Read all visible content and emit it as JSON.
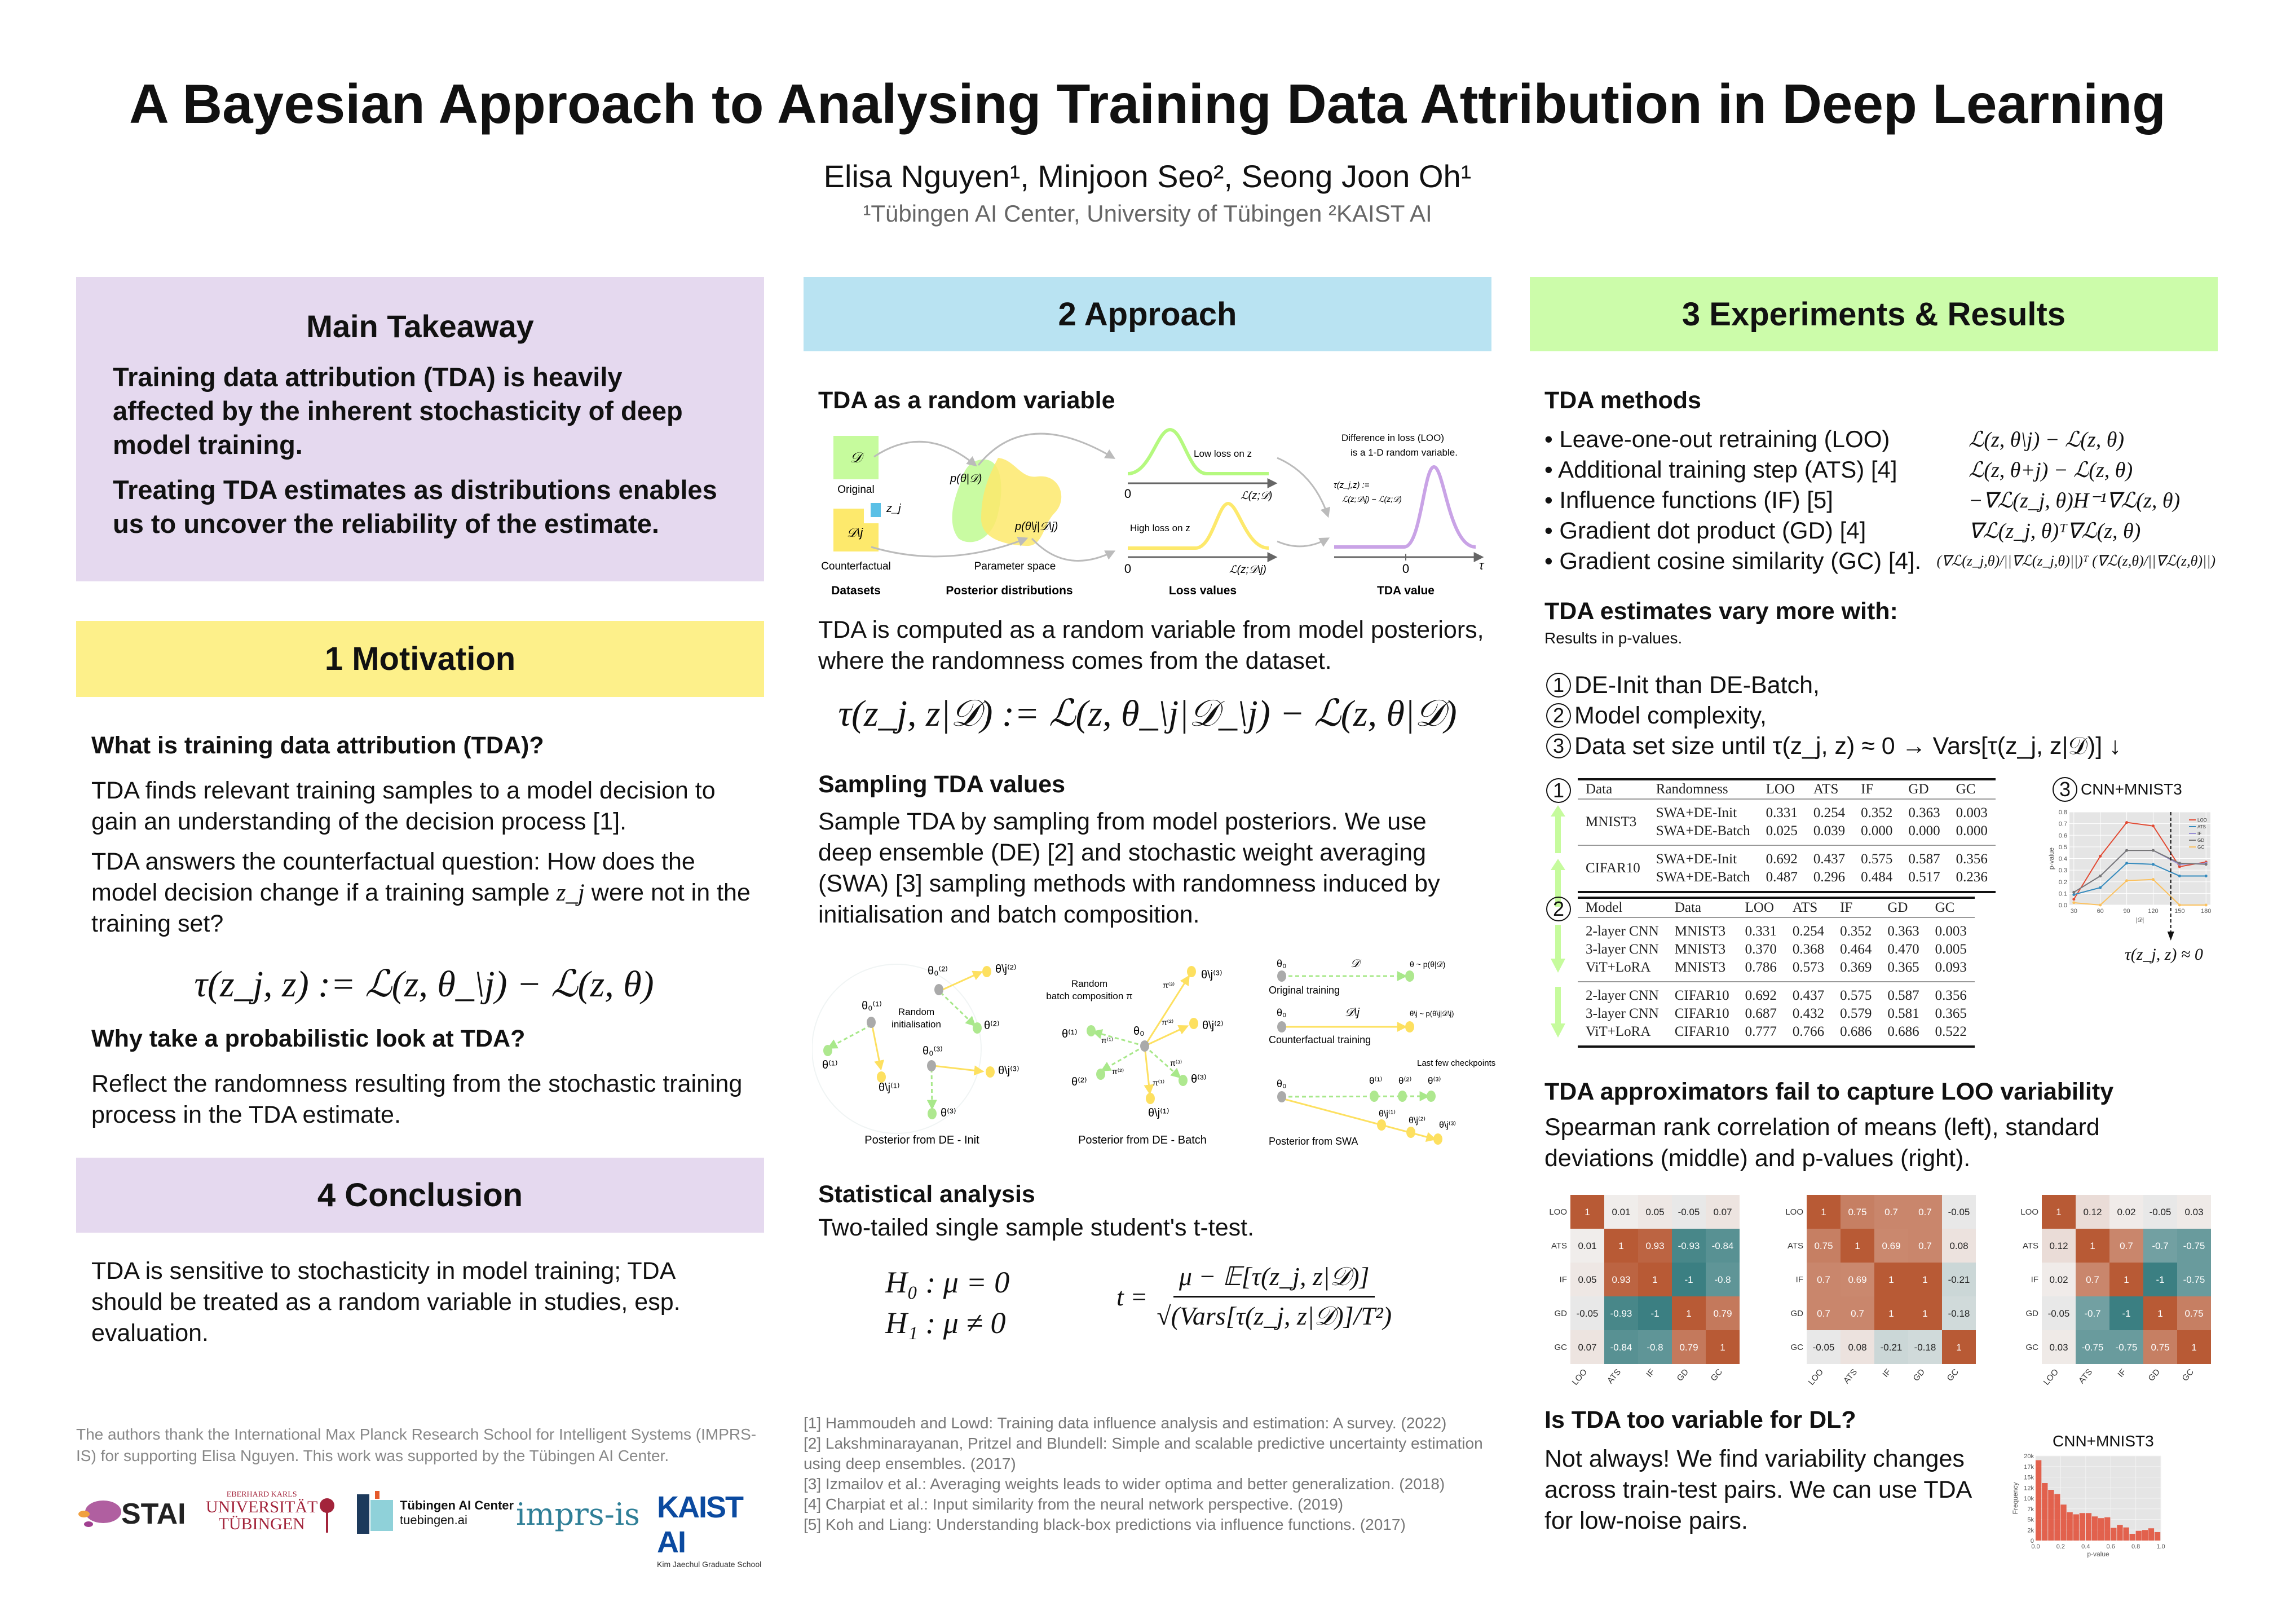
{
  "title": "A Bayesian Approach to Analysing Training Data Attribution in Deep Learning",
  "authors": "Elisa Nguyen¹, Minjoon Seo², Seong Joon Oh¹",
  "affiliations": "¹Tübingen AI Center, University of Tübingen  ²KAIST AI",
  "colors": {
    "lavender": "#e5d9ef",
    "yellow": "#fdf08a",
    "blue": "#b9e3f2",
    "green": "#ccfcaa",
    "heat_pos": "#b85a35",
    "heat_neg": "#3b7f82",
    "heat_mid": "#f1eeed"
  },
  "takeaway": {
    "heading": "Main Takeaway",
    "p1": "Training data attribution (TDA) is heavily affected by the inherent stochasticity of deep model training.",
    "p2": "Treating TDA estimates as distributions enables us to uncover the reliability of the estimate."
  },
  "motivation": {
    "heading": "1  Motivation",
    "q1": "What is training data attribution (TDA)?",
    "p1": "TDA finds relevant training samples to a model decision  to gain an understanding of the decision process [1].",
    "p2a": "TDA answers the counterfactual question: How does the model decision change if a training sample ",
    "p2var": "z_j",
    "p2b": " were not in the training set?",
    "equation": "τ(z_j, z) := ℒ(z, θ_\\j) − ℒ(z, θ)",
    "q2": "Why take a probabilistic look at TDA?",
    "p3": "Reflect the randomness resulting from the stochastic training process in the TDA estimate."
  },
  "conclusion": {
    "heading": "4  Conclusion",
    "text": "TDA is sensitive to stochasticity in model training; TDA should be treated as a random variable in studies, esp. evaluation."
  },
  "acknowledgement": "The authors thank the International Max Planck Research School for Intelligent Systems (IMPRS-IS) for supporting Elisa Nguyen. This work was supported by the Tübingen AI Center.",
  "logos": {
    "stai": "STAI",
    "uni_small": "EBERHARD KARLS",
    "uni_1": "UNIVERSITÄT",
    "uni_2": "TÜBINGEN",
    "tuai_1": "Tübingen AI Center",
    "tuai_2": "tuebingen.ai",
    "imprs": "imprs-is",
    "kaist": "KAIST AI",
    "kaist_sub": "Kim Jaechul Graduate School"
  },
  "approach": {
    "heading": "2  Approach",
    "sub1": "TDA as a random variable",
    "fig1": {
      "d": "𝒟",
      "original": "Original",
      "zj": "z_j",
      "dj": "𝒟\\j",
      "counterfactual": "Counterfactual",
      "post1": "p(θ|𝒟)",
      "post2": "p(θ\\j|𝒟\\j)",
      "param_space": "Parameter space",
      "low": "Low loss on z",
      "high": "High loss on z",
      "zero": "0",
      "loss1": "ℒ(z;𝒟)",
      "loss2": "ℒ(z;𝒟\\j)",
      "diff1": "Difference in loss (LOO)",
      "diff2": "is a 1-D random variable.",
      "tau_def1": "τ(z_j,z) :=",
      "tau_def2": "ℒ(z;𝒟\\j) − ℒ(z;𝒟)",
      "tau": "τ",
      "cap_datasets": "Datasets",
      "cap_post": "Posterior distributions",
      "cap_loss": "Loss values",
      "cap_tda": "TDA value"
    },
    "p1": "TDA is computed as a random variable from model posteriors, where the randomness comes from the dataset.",
    "equation": "τ(z_j, z|𝒟) := ℒ(z, θ_\\j|𝒟_\\j) − ℒ(z, θ|𝒟)",
    "sub2": "Sampling TDA values",
    "p2": "Sample TDA by sampling from model posteriors. We use deep ensemble (DE) [2] and stochastic weight averaging (SWA) [3] sampling methods with randomness induced by initialisation and batch composition.",
    "fig2": {
      "rand_init_1": "Random",
      "rand_init_2": "initialisation",
      "rand_batch_1": "Random",
      "rand_batch_2": "batch composition π",
      "cap_init": "Posterior from DE - Init",
      "cap_batch": "Posterior from DE - Batch",
      "cap_swa": "Posterior from SWA",
      "orig": "Original training",
      "cf": "Counterfactual training",
      "last": "Last few checkpoints",
      "theta0": "θ₀",
      "d": "𝒟",
      "dj": "𝒟\\j",
      "theta_post": "θ ~ p(θ|𝒟)",
      "thetaj_post": "θ\\j ~ p(θ\\j|𝒟\\j)",
      "t01": "θ₀⁽¹⁾",
      "t02": "θ₀⁽²⁾",
      "t03": "θ₀⁽³⁾",
      "t1": "θ⁽¹⁾",
      "t2": "θ⁽²⁾",
      "t3": "θ⁽³⁾",
      "tj1": "θ\\j⁽¹⁾",
      "tj2": "θ\\j⁽²⁾",
      "tj3": "θ\\j⁽³⁾",
      "pi1": "π⁽¹⁾",
      "pi2": "π⁽²⁾",
      "pi3": "π⁽³⁾"
    },
    "sub3": "Statistical analysis",
    "p3": "Two-tailed single sample student's t-test.",
    "h0": "H₀ : μ = 0",
    "h1": "H₁ : μ ≠ 0",
    "t_lhs": "t =",
    "t_num": "μ − 𝔼[τ(z_j, z|𝒟)]",
    "t_den": "√(Vars[τ(z_j, z|𝒟)]/T²)"
  },
  "references": [
    "[1] Hammoudeh and Lowd: Training data influence analysis and estimation: A survey. (2022)",
    "[2] Lakshminarayanan, Pritzel and Blundell: Simple and scalable predictive uncertainty estimation using deep ensembles. (2017)",
    "[3] Izmailov et al.: Averaging weights leads to wider optima and better generalization. (2018)",
    "[4] Charpiat et al.: Input similarity from the neural network perspective. (2019)",
    "[5] Koh and Liang: Understanding black-box predictions via influence functions. (2017)"
  ],
  "experiments": {
    "heading": "3  Experiments & Results",
    "methods_title": "TDA methods",
    "methods": [
      {
        "label": "• Leave-one-out retraining (LOO)",
        "formula": "ℒ(z, θ\\j) − ℒ(z, θ)"
      },
      {
        "label": "• Additional training step (ATS) [4]",
        "formula": "ℒ(z, θ+j) − ℒ(z, θ)"
      },
      {
        "label": "• Influence functions (IF) [5]",
        "formula": "−∇ℒ(z_j, θ)H⁻¹∇ℒ(z, θ)"
      },
      {
        "label": "• Gradient dot product (GD) [4]",
        "formula": "∇ℒ(z_j, θ)ᵀ∇ℒ(z, θ)"
      },
      {
        "label": "• Gradient cosine similarity (GC) [4].",
        "formula": "(∇ℒ(z_j,θ)/||∇ℒ(z_j,θ)||)ᵀ (∇ℒ(z,θ)/||∇ℒ(z,θ)||)"
      }
    ],
    "vary_title": "TDA estimates vary more with:",
    "vary_sub": "Results in p-values.",
    "vary_items": [
      {
        "num": "1",
        "text": "DE-Init than DE-Batch,"
      },
      {
        "num": "2",
        "text": "Model complexity,"
      },
      {
        "num": "3",
        "text": "Data set size until τ(z_j, z) ≈ 0 → Vars[τ(z_j, z|𝒟)] ↓"
      }
    ],
    "table1": {
      "num": "1",
      "headers": [
        "Data",
        "Randomness",
        "LOO",
        "ATS",
        "IF",
        "GD",
        "GC"
      ],
      "groups": [
        {
          "data": "MNIST3",
          "rows": [
            [
              "SWA+DE-Init",
              "0.331",
              "0.254",
              "0.352",
              "0.363",
              "0.003"
            ],
            [
              "SWA+DE-Batch",
              "0.025",
              "0.039",
              "0.000",
              "0.000",
              "0.000"
            ]
          ]
        },
        {
          "data": "CIFAR10",
          "rows": [
            [
              "SWA+DE-Init",
              "0.692",
              "0.437",
              "0.575",
              "0.587",
              "0.356"
            ],
            [
              "SWA+DE-Batch",
              "0.487",
              "0.296",
              "0.484",
              "0.517",
              "0.236"
            ]
          ]
        }
      ]
    },
    "table2": {
      "num": "2",
      "headers": [
        "Model",
        "Data",
        "LOO",
        "ATS",
        "IF",
        "GD",
        "GC"
      ],
      "groups": [
        [
          [
            "2-layer CNN",
            "MNIST3",
            "0.331",
            "0.254",
            "0.352",
            "0.363",
            "0.003"
          ],
          [
            "3-layer CNN",
            "MNIST3",
            "0.370",
            "0.368",
            "0.464",
            "0.470",
            "0.005"
          ],
          [
            "ViT+LoRA",
            "MNIST3",
            "0.786",
            "0.573",
            "0.369",
            "0.365",
            "0.093"
          ]
        ],
        [
          [
            "2-layer CNN",
            "CIFAR10",
            "0.692",
            "0.437",
            "0.575",
            "0.587",
            "0.356"
          ],
          [
            "3-layer CNN",
            "CIFAR10",
            "0.687",
            "0.432",
            "0.579",
            "0.581",
            "0.365"
          ],
          [
            "ViT+LoRA",
            "CIFAR10",
            "0.777",
            "0.766",
            "0.686",
            "0.686",
            "0.522"
          ]
        ]
      ]
    },
    "plot3_num": "3",
    "plot3_title": "CNN+MNIST3",
    "plot3_annotation": "τ(z_j, z) ≈ 0",
    "approx_title": "TDA approximators fail to capture LOO variability",
    "approx_text": "Spearman rank correlation of means (left), standard deviations (middle) and p-values (right).",
    "dl_title": "Is TDA too variable for DL?",
    "dl_text": "Not always! We find variability changes across train-test pairs. We can use TDA for low-noise pairs."
  },
  "chart_data": [
    {
      "type": "line",
      "title": "CNN+MNIST3",
      "xlabel": "|𝒟|",
      "ylabel": "p-value",
      "x": [
        30,
        60,
        90,
        120,
        150,
        180
      ],
      "xticks": [
        "30",
        "60",
        "90",
        "120",
        "150",
        "180"
      ],
      "yticks": [
        "0.0",
        "0.1",
        "0.2",
        "0.3",
        "0.4",
        "0.5",
        "0.6",
        "0.7",
        "0.8"
      ],
      "ylim": [
        0,
        0.8
      ],
      "grid": true,
      "legend": "top-right",
      "vline_x": 140,
      "series": [
        {
          "name": "LOO",
          "color": "#e24a33",
          "values": [
            0.05,
            0.42,
            0.71,
            0.68,
            0.33,
            0.37
          ]
        },
        {
          "name": "ATS",
          "color": "#348abd",
          "values": [
            0.09,
            0.15,
            0.36,
            0.35,
            0.25,
            0.25
          ]
        },
        {
          "name": "IF",
          "color": "#988ed5",
          "values": [
            0.11,
            0.25,
            0.47,
            0.47,
            0.35,
            0.36
          ]
        },
        {
          "name": "GD",
          "color": "#777777",
          "values": [
            0.11,
            0.25,
            0.47,
            0.47,
            0.36,
            0.35
          ]
        },
        {
          "name": "GC",
          "color": "#fbc15e",
          "values": [
            0.02,
            0.0,
            0.21,
            0.22,
            0.0,
            0.0
          ]
        }
      ]
    },
    {
      "type": "heatmap",
      "title": "",
      "labels": [
        "LOO",
        "ATS",
        "IF",
        "GD",
        "GC"
      ],
      "values": [
        [
          1.0,
          0.01,
          0.05,
          -0.05,
          0.07
        ],
        [
          0.01,
          1.0,
          0.93,
          -0.93,
          -0.84
        ],
        [
          0.05,
          0.93,
          1.0,
          -1.0,
          -0.8
        ],
        [
          -0.05,
          -0.93,
          -1.0,
          1.0,
          0.79
        ],
        [
          0.07,
          -0.84,
          -0.8,
          0.79,
          1.0
        ]
      ]
    },
    {
      "type": "heatmap",
      "title": "",
      "labels": [
        "LOO",
        "ATS",
        "IF",
        "GD",
        "GC"
      ],
      "values": [
        [
          1.0,
          0.75,
          0.7,
          0.7,
          -0.05
        ],
        [
          0.75,
          1.0,
          0.69,
          0.7,
          0.08
        ],
        [
          0.7,
          0.69,
          1.0,
          1.0,
          -0.21
        ],
        [
          0.7,
          0.7,
          1.0,
          1.0,
          -0.18
        ],
        [
          -0.05,
          0.08,
          -0.21,
          -0.18,
          1.0
        ]
      ]
    },
    {
      "type": "heatmap",
      "title": "",
      "labels": [
        "LOO",
        "ATS",
        "IF",
        "GD",
        "GC"
      ],
      "values": [
        [
          1.0,
          0.12,
          0.02,
          -0.05,
          0.03
        ],
        [
          0.12,
          1.0,
          0.7,
          -0.7,
          -0.75
        ],
        [
          0.02,
          0.7,
          1.0,
          -1.0,
          -0.75
        ],
        [
          -0.05,
          -0.7,
          -1.0,
          1.0,
          0.75
        ],
        [
          0.03,
          -0.75,
          -0.75,
          0.75,
          1.0
        ]
      ]
    },
    {
      "type": "bar",
      "title": "CNN+MNIST3",
      "xlabel": "p-value",
      "ylabel": "Frequency",
      "bin_edges": [
        0.0,
        0.05,
        0.1,
        0.15,
        0.2,
        0.25,
        0.3,
        0.35,
        0.4,
        0.45,
        0.5,
        0.55,
        0.6,
        0.65,
        0.7,
        0.75,
        0.8,
        0.85,
        0.9,
        0.95,
        1.0
      ],
      "values": [
        19000,
        13600,
        12000,
        11000,
        8500,
        6700,
        6200,
        6500,
        6500,
        5700,
        5300,
        5500,
        3000,
        3700,
        3100,
        1600,
        2300,
        2500,
        2900,
        2000
      ],
      "xticks": [
        "0.0",
        "0.2",
        "0.4",
        "0.6",
        "0.8",
        "1.0"
      ],
      "yticks": [
        "0",
        "2k",
        "5k",
        "7k",
        "10k",
        "12k",
        "15k",
        "17k",
        "20k"
      ],
      "ylim": [
        0,
        20000
      ],
      "xlim": [
        0,
        1
      ],
      "grid": true,
      "color": "#e24a33"
    }
  ]
}
